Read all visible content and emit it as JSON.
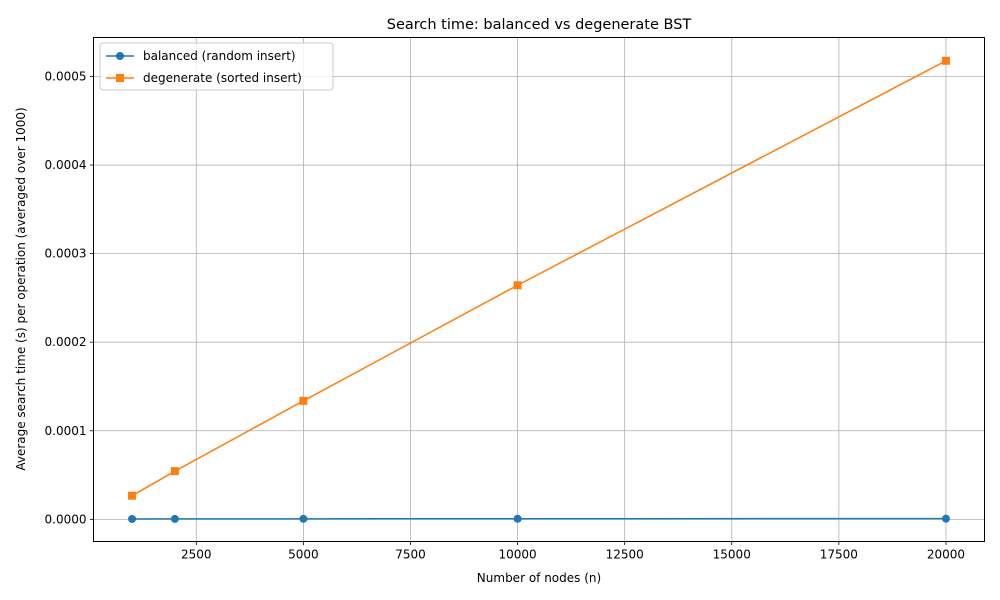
{
  "chart_data": {
    "type": "line",
    "title": "Search time: balanced vs degenerate BST",
    "xlabel": "Number of nodes (n)",
    "ylabel": "Average search time (s) per operation (averaged over 1000)",
    "x": [
      1000,
      2000,
      5000,
      10000,
      20000
    ],
    "xlim": [
      100,
      20900
    ],
    "ylim": [
      -2.5e-05,
      0.000544
    ],
    "xticks": [
      2500,
      5000,
      7500,
      10000,
      12500,
      15000,
      17500,
      20000
    ],
    "xtick_labels": [
      "2500",
      "5000",
      "7500",
      "10000",
      "12500",
      "15000",
      "17500",
      "20000"
    ],
    "yticks": [
      0,
      0.0001,
      0.0002,
      0.0003,
      0.0004,
      0.0005
    ],
    "ytick_labels": [
      "0.0000",
      "0.0001",
      "0.0002",
      "0.0003",
      "0.0004",
      "0.0005"
    ],
    "grid": true,
    "legend_position": "top-left",
    "series": [
      {
        "name": "balanced (random insert)",
        "values": [
          4e-07,
          5e-07,
          6e-07,
          7e-07,
          8e-07
        ],
        "color": "#1f77b4",
        "marker": "circle"
      },
      {
        "name": "degenerate (sorted insert)",
        "values": [
          2.67e-05,
          5.44e-05,
          0.0001338,
          0.0002643,
          0.0005177
        ],
        "color": "#ff7f0e",
        "marker": "square"
      }
    ]
  }
}
